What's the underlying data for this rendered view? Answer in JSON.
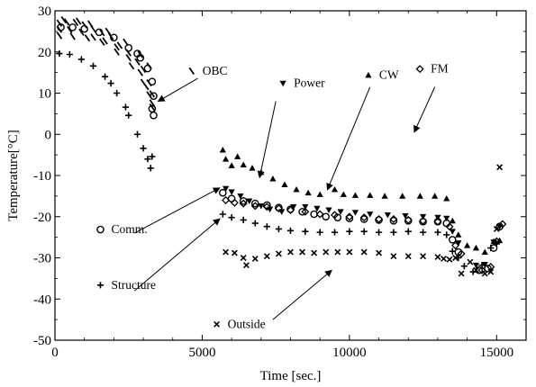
{
  "chart_data": {
    "type": "scatter",
    "xlabel": "Time [sec.]",
    "ylabel": "Temperature[°C]",
    "xlim": [
      0,
      16000
    ],
    "ylim": [
      -50,
      30
    ],
    "x_ticks": [
      0,
      5000,
      10000,
      15000
    ],
    "y_ticks": [
      -50,
      -40,
      -30,
      -20,
      -10,
      0,
      10,
      20,
      30
    ],
    "x_tick_labels": [
      "0",
      "5000",
      "10000",
      "15000"
    ],
    "y_tick_labels": [
      "-50",
      "-40",
      "-30",
      "-20",
      "-10",
      "0",
      "10",
      "20",
      "30"
    ],
    "grid": false,
    "annotations": [
      {
        "text": "OBC",
        "x": 4950,
        "y": 14.5
      },
      {
        "text": "Power",
        "x": 8050,
        "y": 11.5
      },
      {
        "text": "CW",
        "x": 10950,
        "y": 13.5
      },
      {
        "text": "FM",
        "x": 12700,
        "y": 15
      },
      {
        "text": "Comm.",
        "x": 1850,
        "y": -24
      },
      {
        "text": "Structure",
        "x": 1850,
        "y": -37.5
      },
      {
        "text": "Outside",
        "x": 5800,
        "y": -47
      }
    ],
    "series": [
      {
        "name": "OBC",
        "marker": "slash",
        "data": [
          [
            150,
            27
          ],
          [
            400,
            27.3
          ],
          [
            700,
            27.2
          ],
          [
            1000,
            26.6
          ],
          [
            1300,
            25.6
          ],
          [
            1600,
            24.7
          ],
          [
            1900,
            23.8
          ],
          [
            2200,
            21.6
          ],
          [
            2500,
            19.8
          ],
          [
            2800,
            17.6
          ],
          [
            3000,
            15.8
          ],
          [
            3200,
            12.5
          ],
          [
            3300,
            9.8
          ],
          [
            150,
            25.5
          ],
          [
            500,
            25.4
          ],
          [
            900,
            24.8
          ],
          [
            1300,
            23.6
          ],
          [
            1700,
            22.7
          ],
          [
            2100,
            21.2
          ],
          [
            2500,
            18.6
          ],
          [
            2900,
            15
          ],
          [
            3100,
            11.6
          ],
          [
            3300,
            7.6
          ],
          [
            150,
            24
          ],
          [
            600,
            23.8
          ],
          [
            1100,
            23.4
          ],
          [
            1600,
            22.4
          ],
          [
            2100,
            20
          ],
          [
            2600,
            16.6
          ],
          [
            3000,
            12.6
          ],
          [
            3200,
            9.6
          ],
          [
            3300,
            6.6
          ],
          [
            300,
            27.8
          ],
          [
            800,
            27.5
          ],
          [
            1200,
            26.8
          ],
          [
            1800,
            25
          ],
          [
            2400,
            22.4
          ],
          [
            2900,
            19.4
          ],
          [
            3200,
            16.6
          ]
        ]
      },
      {
        "name": "Comm.",
        "marker": "circle",
        "data": [
          [
            200,
            26
          ],
          [
            600,
            26
          ],
          [
            1000,
            25.6
          ],
          [
            1500,
            24.8
          ],
          [
            2000,
            23.5
          ],
          [
            2500,
            21
          ],
          [
            2900,
            18.6
          ],
          [
            3150,
            16
          ],
          [
            3300,
            12.8
          ],
          [
            3350,
            9.3
          ],
          [
            3350,
            4.6
          ],
          [
            3300,
            6.2
          ],
          [
            2800,
            19.6
          ],
          [
            5700,
            -14.2
          ],
          [
            6000,
            -15.6
          ],
          [
            6400,
            -16.2
          ],
          [
            6800,
            -16.8
          ],
          [
            7200,
            -17.2
          ],
          [
            7600,
            -17.8
          ],
          [
            8000,
            -18.2
          ],
          [
            8400,
            -18.8
          ],
          [
            8800,
            -19.4
          ],
          [
            9200,
            -20
          ],
          [
            9600,
            -20.2
          ],
          [
            10000,
            -20.4
          ],
          [
            10500,
            -20.6
          ],
          [
            11000,
            -20.8
          ],
          [
            11500,
            -21
          ],
          [
            12000,
            -21
          ],
          [
            12500,
            -21.2
          ],
          [
            13000,
            -21.2
          ],
          [
            13300,
            -21.6
          ],
          [
            13500,
            -25.6
          ],
          [
            13700,
            -28.6
          ],
          [
            14400,
            -33
          ],
          [
            14700,
            -32.6
          ],
          [
            14900,
            -27.6
          ],
          [
            15100,
            -22.4
          ]
        ]
      },
      {
        "name": "Power",
        "marker": "triangle-down",
        "data": [
          [
            5800,
            -13.2
          ],
          [
            6000,
            -14
          ],
          [
            6300,
            -15
          ],
          [
            6600,
            -16.2
          ],
          [
            7000,
            -17.4
          ],
          [
            7300,
            -18.2
          ],
          [
            7700,
            -18.8
          ],
          [
            8100,
            -17.6
          ],
          [
            8500,
            -17.6
          ],
          [
            8900,
            -18
          ],
          [
            9300,
            -18.4
          ],
          [
            9700,
            -18.8
          ],
          [
            10200,
            -19
          ],
          [
            10700,
            -19.4
          ],
          [
            11300,
            -19.6
          ],
          [
            11900,
            -19.8
          ],
          [
            12500,
            -20
          ],
          [
            13000,
            -20.2
          ],
          [
            13300,
            -20.4
          ],
          [
            13500,
            -23.6
          ],
          [
            13700,
            -26.4
          ],
          [
            14300,
            -31.8
          ],
          [
            14600,
            -31.6
          ],
          [
            14900,
            -26.2
          ],
          [
            15100,
            -22.4
          ]
        ]
      },
      {
        "name": "CW",
        "marker": "triangle-up",
        "data": [
          [
            5700,
            -3.8
          ],
          [
            5800,
            -6
          ],
          [
            6000,
            -7.6
          ],
          [
            6200,
            -5.4
          ],
          [
            6400,
            -7.4
          ],
          [
            6700,
            -8.2
          ],
          [
            7000,
            -9.2
          ],
          [
            7400,
            -10.8
          ],
          [
            7800,
            -12.2
          ],
          [
            8200,
            -13.4
          ],
          [
            8600,
            -14.2
          ],
          [
            9000,
            -14.6
          ],
          [
            9500,
            -13.4
          ],
          [
            9800,
            -14.6
          ],
          [
            10200,
            -14.8
          ],
          [
            10700,
            -14.8
          ],
          [
            11200,
            -15
          ],
          [
            11800,
            -15
          ],
          [
            12400,
            -15
          ],
          [
            12900,
            -15
          ],
          [
            13300,
            -15.6
          ],
          [
            13500,
            -21
          ],
          [
            13700,
            -24.4
          ],
          [
            14000,
            -27
          ],
          [
            14300,
            -27.6
          ],
          [
            14600,
            -28.6
          ],
          [
            14900,
            -26
          ],
          [
            15100,
            -25.8
          ]
        ]
      },
      {
        "name": "FM",
        "marker": "diamond",
        "data": [
          [
            5800,
            -16
          ],
          [
            6100,
            -16.6
          ],
          [
            6400,
            -16.8
          ],
          [
            6800,
            -17.4
          ],
          [
            7200,
            -17.6
          ],
          [
            7600,
            -18
          ],
          [
            8000,
            -18.4
          ],
          [
            8500,
            -18.8
          ],
          [
            9000,
            -19.4
          ],
          [
            9500,
            -19.6
          ],
          [
            10000,
            -20
          ],
          [
            10500,
            -20.2
          ],
          [
            11000,
            -20.6
          ],
          [
            11500,
            -20.6
          ],
          [
            12000,
            -20.8
          ],
          [
            12500,
            -21
          ],
          [
            13000,
            -21.2
          ],
          [
            13400,
            -22.4
          ],
          [
            13600,
            -27
          ],
          [
            13800,
            -29
          ],
          [
            14500,
            -33
          ],
          [
            14800,
            -32.2
          ],
          [
            15000,
            -26
          ],
          [
            15200,
            -21.8
          ]
        ]
      },
      {
        "name": "Structure",
        "marker": "plus",
        "data": [
          [
            150,
            19.6
          ],
          [
            500,
            19.4
          ],
          [
            900,
            18.2
          ],
          [
            1300,
            16.6
          ],
          [
            1700,
            14
          ],
          [
            2100,
            10
          ],
          [
            2500,
            4.6
          ],
          [
            2800,
            0
          ],
          [
            3000,
            -3.4
          ],
          [
            3150,
            -6
          ],
          [
            3250,
            -8.2
          ],
          [
            3300,
            -5.4
          ],
          [
            2400,
            6.6
          ],
          [
            1900,
            12.4
          ],
          [
            5700,
            -19.4
          ],
          [
            6000,
            -20.2
          ],
          [
            6400,
            -20.8
          ],
          [
            6800,
            -21.6
          ],
          [
            7200,
            -22.4
          ],
          [
            7600,
            -23
          ],
          [
            8000,
            -23.4
          ],
          [
            8500,
            -23.6
          ],
          [
            9000,
            -23.8
          ],
          [
            9500,
            -23.8
          ],
          [
            10000,
            -23.6
          ],
          [
            10500,
            -23.6
          ],
          [
            11000,
            -23.8
          ],
          [
            11500,
            -23.8
          ],
          [
            12000,
            -23.6
          ],
          [
            12500,
            -23.8
          ],
          [
            13000,
            -23.8
          ],
          [
            13300,
            -24.4
          ],
          [
            13500,
            -28.4
          ],
          [
            13700,
            -30
          ],
          [
            13900,
            -32
          ],
          [
            14200,
            -33.4
          ],
          [
            14500,
            -31.8
          ],
          [
            14800,
            -27.6
          ],
          [
            15000,
            -26.6
          ]
        ]
      },
      {
        "name": "Outside",
        "marker": "x",
        "data": [
          [
            5800,
            -28.6
          ],
          [
            6100,
            -28.8
          ],
          [
            6400,
            -30
          ],
          [
            6800,
            -30.2
          ],
          [
            7200,
            -29.6
          ],
          [
            7600,
            -29
          ],
          [
            8000,
            -28.6
          ],
          [
            8400,
            -28.6
          ],
          [
            8800,
            -28.8
          ],
          [
            9200,
            -28.6
          ],
          [
            9600,
            -28.6
          ],
          [
            10000,
            -28.6
          ],
          [
            10500,
            -28.6
          ],
          [
            11000,
            -28.8
          ],
          [
            11500,
            -29.6
          ],
          [
            12000,
            -29.6
          ],
          [
            12500,
            -29.6
          ],
          [
            13000,
            -29.8
          ],
          [
            13200,
            -30.2
          ],
          [
            13400,
            -30.4
          ],
          [
            13600,
            -30
          ],
          [
            13800,
            -33.8
          ],
          [
            14100,
            -31
          ],
          [
            14300,
            -33
          ],
          [
            14600,
            -33.8
          ],
          [
            14800,
            -33.4
          ],
          [
            15000,
            -23
          ],
          [
            15100,
            -8
          ],
          [
            6500,
            -31.8
          ]
        ]
      }
    ]
  }
}
